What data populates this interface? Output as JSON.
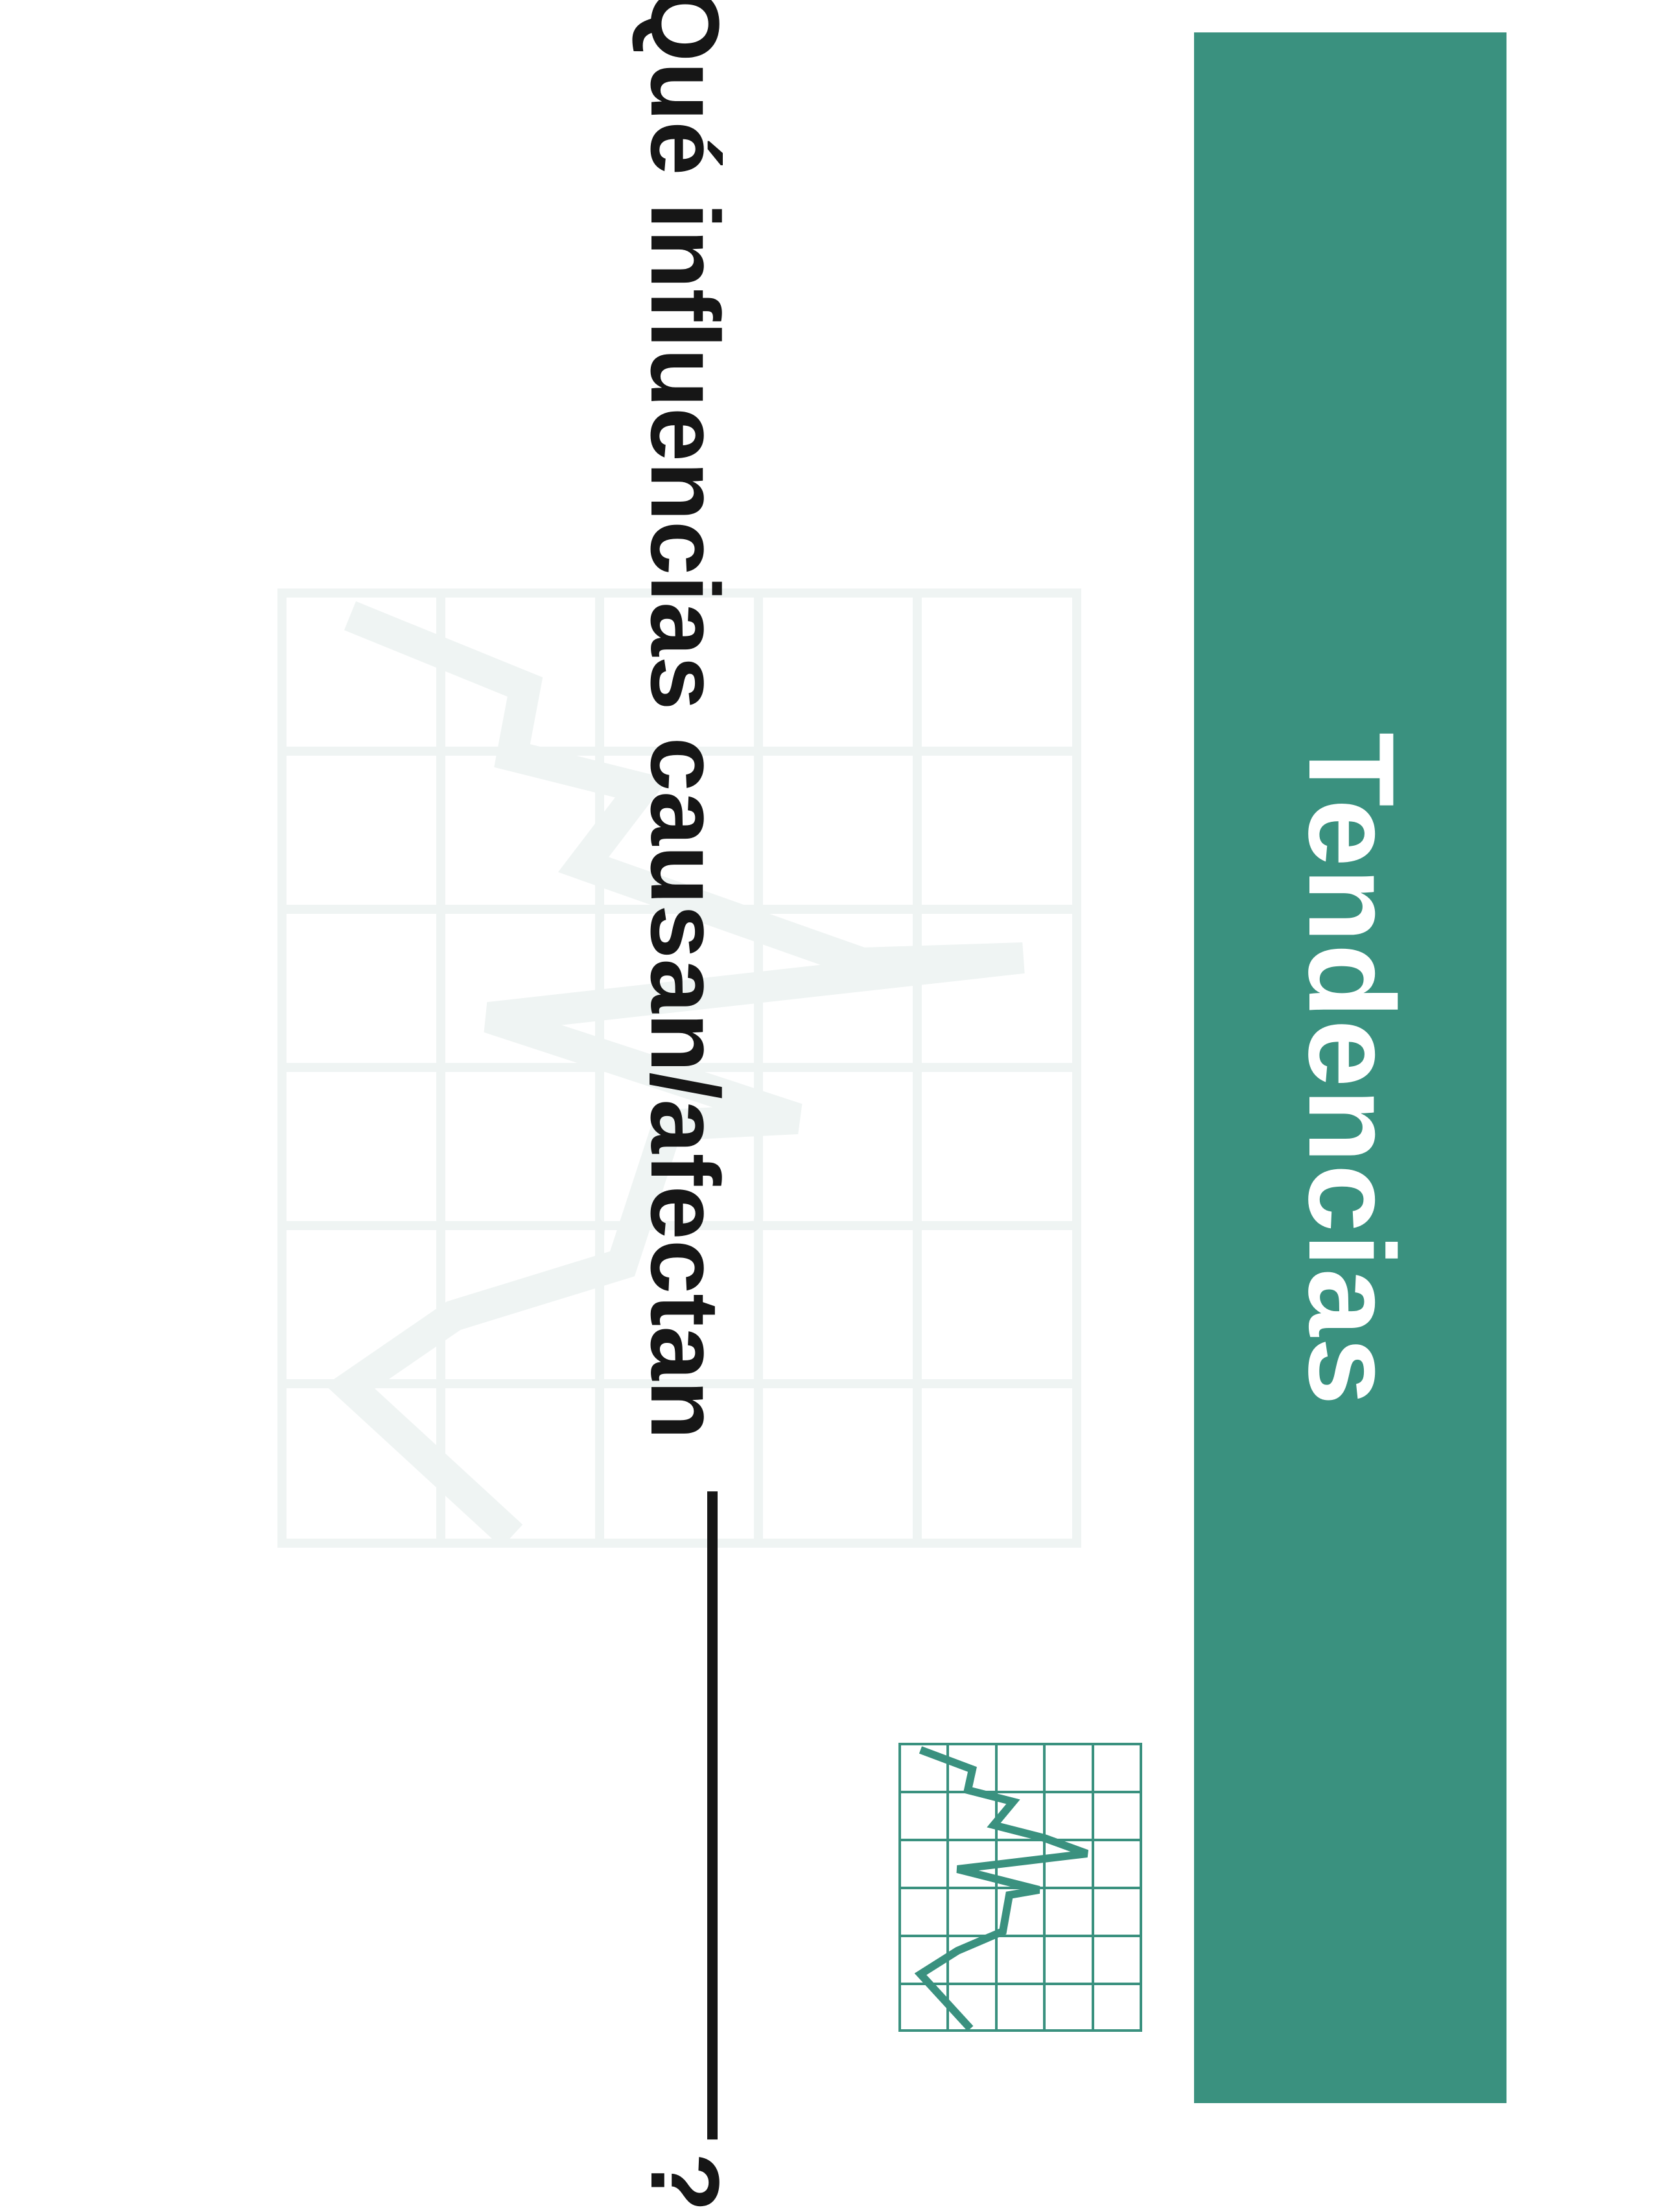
{
  "sidebar": {
    "title": "Tendencias",
    "color": "#3a917f"
  },
  "question": {
    "prompt": "¿Qué influencias causan/afectan",
    "end": "?"
  },
  "colors": {
    "text": "#161616",
    "watermark": "#eff4f3",
    "background": "#ffffff"
  },
  "icons": [
    "trend-grid-watermark-icon",
    "trend-chart-icon"
  ]
}
